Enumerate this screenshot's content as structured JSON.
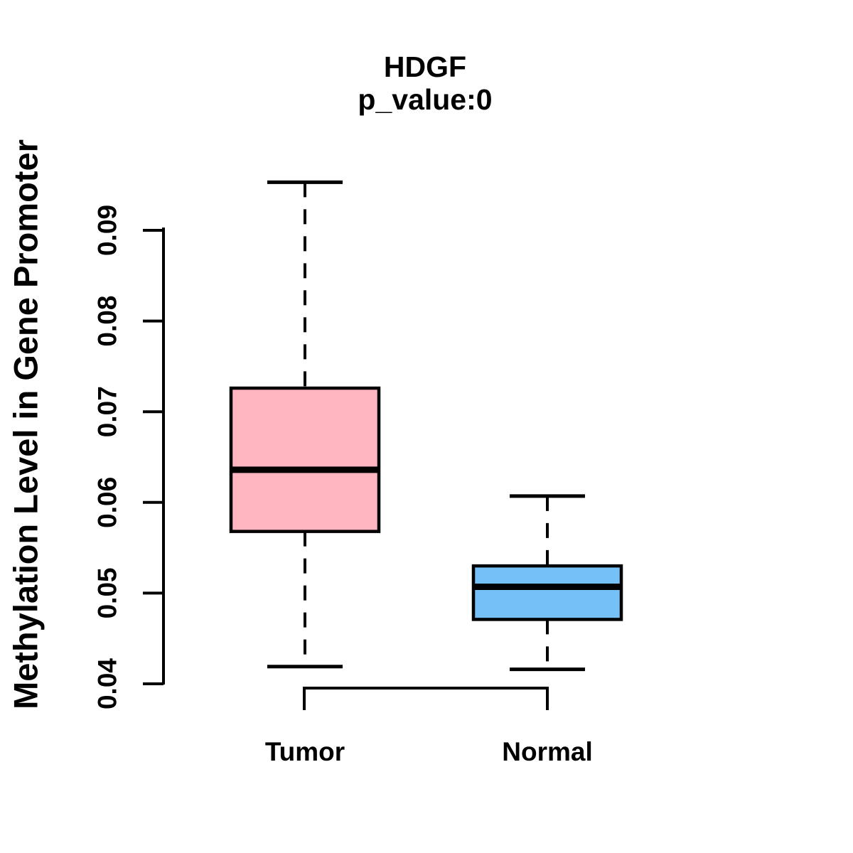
{
  "title": "HDGF",
  "subtitle": "p_value:0",
  "y_axis_title": "Methylation Level in Gene Promoter",
  "chart_data": {
    "type": "boxplot",
    "title": "HDGF",
    "subtitle": "p_value:0",
    "ylabel": "Methylation Level in Gene Promoter",
    "xlabel": "",
    "categories": [
      "Tumor",
      "Normal"
    ],
    "ytick_labels": [
      "0.04",
      "0.05",
      "0.06",
      "0.07",
      "0.08",
      "0.09"
    ],
    "ylim": [
      0.04,
      0.0955
    ],
    "grid": false,
    "legend": "none",
    "axis_color": "#000000",
    "whisker_style": "dashed",
    "series": [
      {
        "name": "Tumor",
        "color": "#FFB6C1",
        "whisker_low": 0.0419,
        "q1": 0.0568,
        "median": 0.0636,
        "q3": 0.0726,
        "whisker_high": 0.0953
      },
      {
        "name": "Normal",
        "color": "#76C0F8",
        "whisker_low": 0.0416,
        "q1": 0.0471,
        "median": 0.0507,
        "q3": 0.053,
        "whisker_high": 0.0607
      }
    ]
  }
}
